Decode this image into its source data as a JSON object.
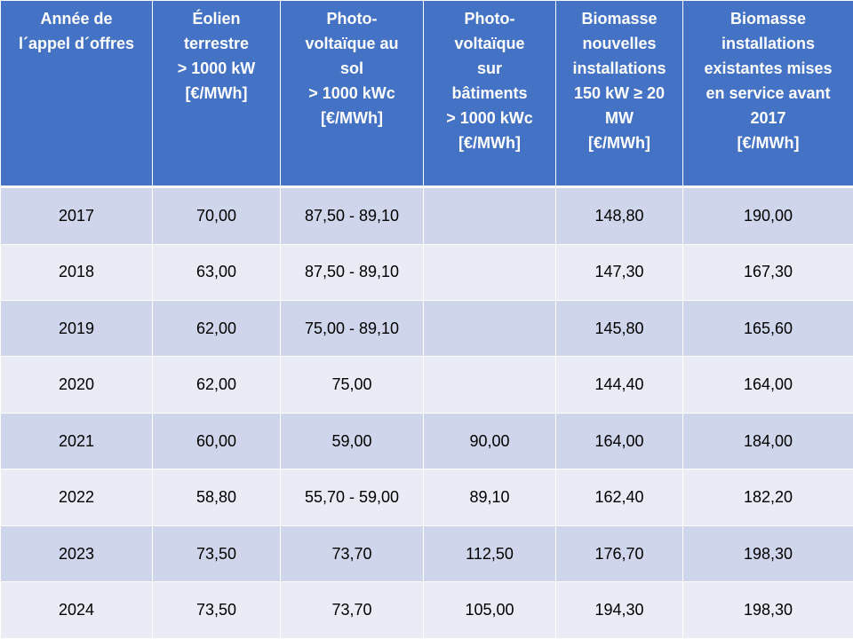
{
  "colors": {
    "header": "#4472C4",
    "row_dark": "#CFD5EA",
    "row_light": "#E9EBF5"
  },
  "headers": [
    "Année de\nl´appel d´offres",
    "Éolien\nterrestre\n> 1000 kW\n[€/MWh]",
    "Photo-\nvoltaïque au\nsol\n> 1000 kWc\n[€/MWh]",
    "Photo-\nvoltaïque\nsur\nbâtiments\n> 1000 kWc\n[€/MWh]",
    "Biomasse\nnouvelles\ninstallations\n150 kW ≥ 20\nMW\n[€/MWh]",
    "Biomasse\ninstallations\nexistantes mises\nen service avant\n2017\n[€/MWh]"
  ],
  "rows": [
    [
      "2017",
      "70,00",
      "87,50 - 89,10",
      "",
      "148,80",
      "190,00"
    ],
    [
      "2018",
      "63,00",
      "87,50 - 89,10",
      "",
      "147,30",
      "167,30"
    ],
    [
      "2019",
      "62,00",
      "75,00 - 89,10",
      "",
      "145,80",
      "165,60"
    ],
    [
      "2020",
      "62,00",
      "75,00",
      "",
      "144,40",
      "164,00"
    ],
    [
      "2021",
      "60,00",
      "59,00",
      "90,00",
      "164,00",
      "184,00"
    ],
    [
      "2022",
      "58,80",
      "55,70 - 59,00",
      "89,10",
      "162,40",
      "182,20"
    ],
    [
      "2023",
      "73,50",
      "73,70",
      "112,50",
      "176,70",
      "198,30"
    ],
    [
      "2024",
      "73,50",
      "73,70",
      "105,00",
      "194,30",
      "198,30"
    ]
  ]
}
